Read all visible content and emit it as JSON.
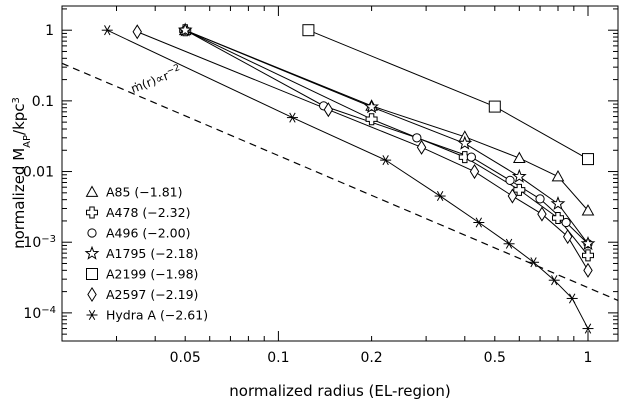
{
  "chart_data": {
    "type": "line",
    "xscale": "log",
    "yscale": "log",
    "xlim": [
      0.02,
      1.25
    ],
    "ylim": [
      4e-05,
      2.2
    ],
    "xlabel": "normalized radius (EL-region)",
    "ylabel": "normalized M",
    "ylabel_sub": "AP",
    "ylabel_tail": "/kpc",
    "ylabel_sup": "3",
    "xticks": [
      {
        "value": 0.05,
        "label": "0.05"
      },
      {
        "value": 0.1,
        "label": "0.1"
      },
      {
        "value": 0.2,
        "label": "0.2"
      },
      {
        "value": 0.5,
        "label": "0.5"
      },
      {
        "value": 1,
        "label": "1"
      }
    ],
    "yticks": [
      {
        "value": 1,
        "label": "1",
        "exp": ""
      },
      {
        "value": 0.1,
        "label": "0.1",
        "exp": ""
      },
      {
        "value": 0.01,
        "label": "0.01",
        "exp": ""
      },
      {
        "value": 0.001,
        "label": "10",
        "exp": "−3"
      },
      {
        "value": 0.0001,
        "label": "10",
        "exp": "−4"
      }
    ],
    "annotation": {
      "text": "ṁ(r)∝r",
      "sup": "−2",
      "x": 0.022,
      "y": 0.32
    },
    "reference_line": {
      "style": "dashed",
      "points": [
        [
          0.02,
          0.34
        ],
        [
          1.25,
          0.00015
        ]
      ]
    },
    "series": [
      {
        "name": "A85 (−1.81)",
        "marker": "triangle",
        "x": [
          0.05,
          0.2,
          0.4,
          0.6,
          0.8,
          1.0
        ],
        "y": [
          1.0,
          0.085,
          0.031,
          0.0155,
          0.0085,
          0.0028
        ]
      },
      {
        "name": "A478 (−2.32)",
        "marker": "cross",
        "x": [
          0.05,
          0.2,
          0.4,
          0.6,
          0.8,
          1.0
        ],
        "y": [
          1.0,
          0.055,
          0.016,
          0.0055,
          0.0022,
          0.00065
        ]
      },
      {
        "name": "A496 (−2.00)",
        "marker": "circle",
        "x": [
          0.05,
          0.14,
          0.28,
          0.42,
          0.56,
          0.7,
          0.85,
          1.0
        ],
        "y": [
          1.0,
          0.085,
          0.03,
          0.016,
          0.0075,
          0.0041,
          0.0019,
          0.00095
        ]
      },
      {
        "name": "A1795 (−2.18)",
        "marker": "star",
        "x": [
          0.05,
          0.2,
          0.4,
          0.6,
          0.8,
          1.0
        ],
        "y": [
          1.0,
          0.082,
          0.025,
          0.0085,
          0.0035,
          0.00095
        ]
      },
      {
        "name": "A2199 (−1.98)",
        "marker": "square",
        "x": [
          0.125,
          0.5,
          1.0
        ],
        "y": [
          1.0,
          0.083,
          0.015
        ]
      },
      {
        "name": "A2597 (−2.19)",
        "marker": "diamond",
        "x": [
          0.035,
          0.145,
          0.29,
          0.43,
          0.57,
          0.71,
          0.86,
          1.0
        ],
        "y": [
          0.95,
          0.075,
          0.022,
          0.01,
          0.0045,
          0.0025,
          0.0012,
          0.0004
        ]
      },
      {
        "name": "Hydra A (−2.61)",
        "marker": "asterisk",
        "x": [
          0.028,
          0.111,
          0.222,
          0.333,
          0.444,
          0.556,
          0.667,
          0.778,
          0.889,
          1.0
        ],
        "y": [
          1.0,
          0.058,
          0.0145,
          0.0045,
          0.0019,
          0.00095,
          0.00052,
          0.00029,
          0.00016,
          6e-05
        ]
      }
    ]
  }
}
